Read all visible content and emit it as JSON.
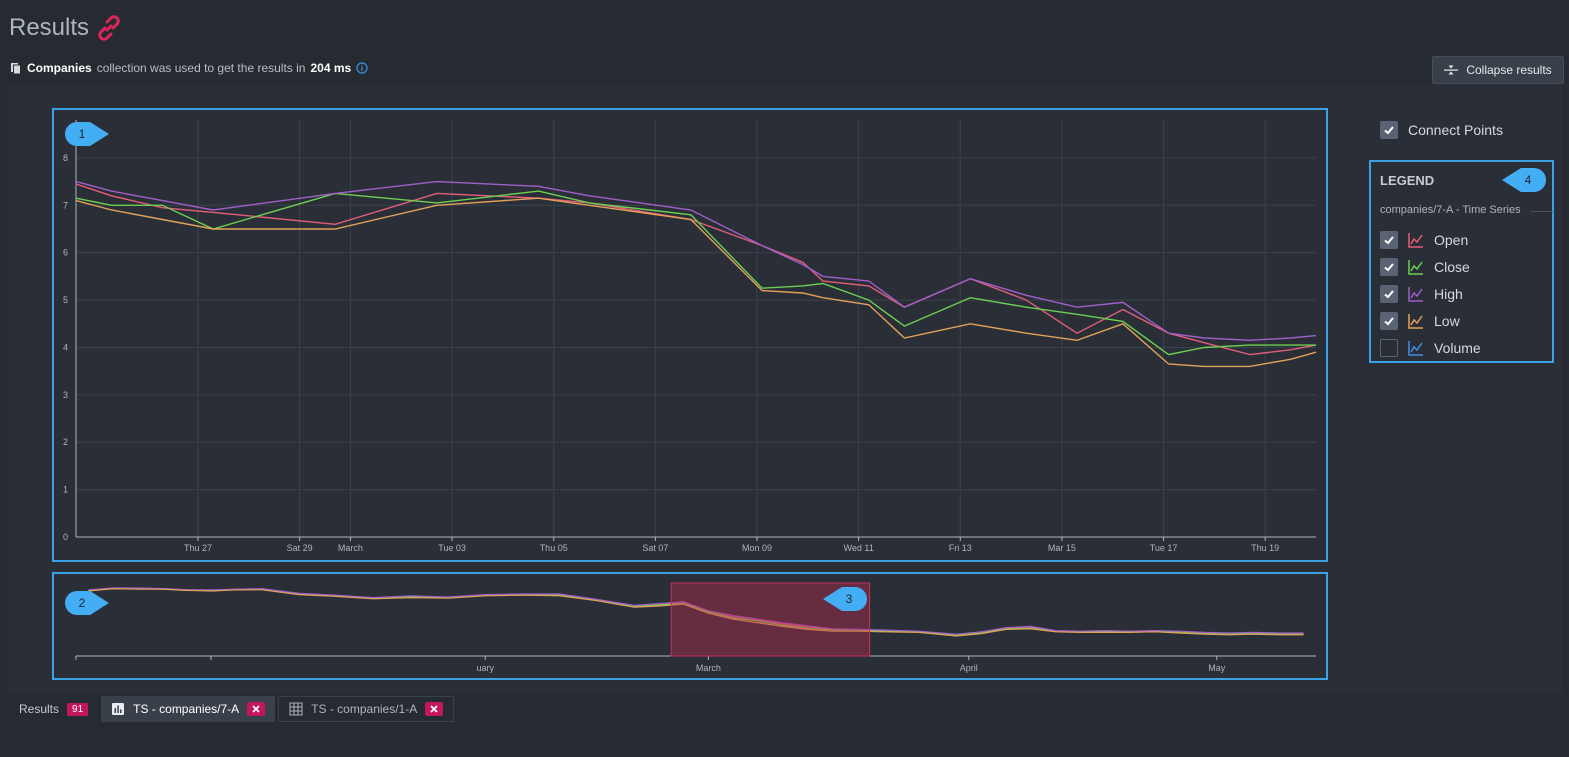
{
  "header": {
    "title": "Results",
    "collection_name": "Companies",
    "text_middle": "collection  was used to get the results in",
    "duration": "204 ms",
    "collapse_label": "Collapse results"
  },
  "controls": {
    "connect_points_label": "Connect Points",
    "connect_points_checked": true
  },
  "legend": {
    "title": "LEGEND",
    "subtitle": "companies/7-A - Time Series",
    "items": [
      {
        "label": "Open",
        "checked": true,
        "color": "#e35d7a"
      },
      {
        "label": "Close",
        "checked": true,
        "color": "#6ccf53"
      },
      {
        "label": "High",
        "checked": true,
        "color": "#a05fc9"
      },
      {
        "label": "Low",
        "checked": true,
        "color": "#e3a05a"
      },
      {
        "label": "Volume",
        "checked": false,
        "color": "#3f8fe0"
      }
    ]
  },
  "markers": [
    "1",
    "2",
    "3",
    "4"
  ],
  "tabs": [
    {
      "label": "Results",
      "badge": "91"
    },
    {
      "label": "TS - companies/7-A"
    },
    {
      "label": "TS - companies/1-A"
    }
  ],
  "chart_data": [
    {
      "type": "line",
      "y_ticks": [
        "0",
        "1",
        "2",
        "3",
        "4",
        "5",
        "6",
        "7",
        "8"
      ],
      "ylim": [
        0,
        8.8
      ],
      "x_tick_labels": [
        "Thu 27",
        "Sat 29",
        "March",
        "Tue 03",
        "Thu 05",
        "Sat 07",
        "Mon 09",
        "Wed 11",
        "Fri 13",
        "Mar 15",
        "Tue 17",
        "Thu 19"
      ],
      "x_tick_positions": [
        3,
        5,
        6,
        8,
        10,
        12,
        14,
        16,
        18,
        20,
        22,
        24
      ],
      "xlim": [
        0.6,
        25
      ],
      "grid": true,
      "x": [
        0.6,
        1.3,
        2.3,
        3.3,
        5.7,
        7.7,
        9.7,
        10.7,
        12.7,
        14.1,
        14.9,
        15.3,
        16.2,
        16.9,
        18.2,
        19.3,
        20.3,
        21.2,
        22.1,
        22.8,
        23.7,
        24.5,
        25
      ],
      "series": [
        {
          "name": "Open",
          "color": "#e35d7a",
          "values": [
            7.45,
            7.2,
            6.95,
            6.85,
            6.6,
            7.25,
            7.15,
            7.05,
            6.7,
            6.15,
            5.8,
            5.4,
            5.3,
            4.85,
            5.45,
            5.0,
            4.3,
            4.8,
            4.3,
            4.1,
            3.85,
            3.95,
            4.05
          ]
        },
        {
          "name": "Close",
          "color": "#6ccf53",
          "values": [
            7.15,
            7.0,
            7.0,
            6.5,
            7.25,
            7.05,
            7.3,
            7.05,
            6.8,
            5.25,
            5.3,
            5.35,
            5.0,
            4.45,
            5.05,
            4.85,
            4.7,
            4.55,
            3.85,
            4.0,
            4.05,
            4.05,
            4.05
          ]
        },
        {
          "name": "High",
          "color": "#a05fc9",
          "values": [
            7.5,
            7.3,
            7.1,
            6.9,
            7.25,
            7.5,
            7.4,
            7.2,
            6.9,
            6.15,
            5.75,
            5.5,
            5.4,
            4.85,
            5.45,
            5.1,
            4.85,
            4.95,
            4.3,
            4.2,
            4.15,
            4.2,
            4.25
          ]
        },
        {
          "name": "Low",
          "color": "#e3a05a",
          "values": [
            7.1,
            6.9,
            6.7,
            6.5,
            6.5,
            7.0,
            7.15,
            7.0,
            6.7,
            5.2,
            5.15,
            5.05,
            4.9,
            4.2,
            4.5,
            4.3,
            4.15,
            4.5,
            3.65,
            3.6,
            3.6,
            3.75,
            3.9
          ]
        }
      ]
    },
    {
      "type": "line",
      "x_tick_labels": [
        "uary",
        "March",
        "April",
        "May"
      ],
      "x_tick_positions": [
        0.33,
        0.51,
        0.72,
        0.92
      ],
      "xlim": [
        0,
        1
      ],
      "brush": [
        0.48,
        0.64
      ],
      "x": [
        0.01,
        0.03,
        0.05,
        0.07,
        0.09,
        0.11,
        0.13,
        0.15,
        0.18,
        0.21,
        0.24,
        0.27,
        0.3,
        0.33,
        0.36,
        0.39,
        0.42,
        0.45,
        0.47,
        0.49,
        0.51,
        0.53,
        0.55,
        0.57,
        0.59,
        0.61,
        0.63,
        0.65,
        0.68,
        0.71,
        0.73,
        0.75,
        0.77,
        0.79,
        0.81,
        0.83,
        0.85,
        0.87,
        0.89,
        0.91,
        0.93,
        0.95,
        0.97,
        0.99
      ],
      "series": [
        {
          "name": "Open",
          "color": "#e35d7a",
          "values": [
            0.96,
            1.0,
            0.99,
            0.99,
            0.97,
            0.96,
            0.98,
            0.98,
            0.9,
            0.87,
            0.83,
            0.86,
            0.84,
            0.88,
            0.89,
            0.89,
            0.8,
            0.7,
            0.72,
            0.76,
            0.6,
            0.52,
            0.46,
            0.4,
            0.35,
            0.31,
            0.3,
            0.29,
            0.27,
            0.22,
            0.26,
            0.33,
            0.35,
            0.28,
            0.27,
            0.28,
            0.27,
            0.28,
            0.27,
            0.25,
            0.24,
            0.25,
            0.24,
            0.24
          ]
        },
        {
          "name": "Close",
          "color": "#6ccf53",
          "values": [
            0.96,
            0.99,
            0.99,
            0.98,
            0.96,
            0.96,
            0.97,
            0.98,
            0.9,
            0.87,
            0.83,
            0.85,
            0.84,
            0.88,
            0.89,
            0.88,
            0.8,
            0.69,
            0.72,
            0.74,
            0.6,
            0.5,
            0.45,
            0.38,
            0.33,
            0.3,
            0.3,
            0.28,
            0.27,
            0.21,
            0.25,
            0.32,
            0.33,
            0.28,
            0.27,
            0.27,
            0.27,
            0.28,
            0.26,
            0.24,
            0.23,
            0.24,
            0.23,
            0.23
          ]
        },
        {
          "name": "High",
          "color": "#a05fc9",
          "values": [
            0.97,
            1.0,
            1.0,
            0.99,
            0.97,
            0.97,
            0.98,
            0.99,
            0.91,
            0.88,
            0.84,
            0.87,
            0.85,
            0.89,
            0.9,
            0.9,
            0.81,
            0.71,
            0.74,
            0.77,
            0.62,
            0.54,
            0.48,
            0.42,
            0.37,
            0.32,
            0.31,
            0.3,
            0.28,
            0.23,
            0.27,
            0.34,
            0.36,
            0.29,
            0.28,
            0.29,
            0.28,
            0.29,
            0.28,
            0.26,
            0.25,
            0.26,
            0.25,
            0.25
          ]
        },
        {
          "name": "Low",
          "color": "#e3a05a",
          "values": [
            0.95,
            0.99,
            0.98,
            0.98,
            0.96,
            0.95,
            0.97,
            0.97,
            0.89,
            0.86,
            0.82,
            0.84,
            0.83,
            0.87,
            0.88,
            0.87,
            0.79,
            0.68,
            0.7,
            0.73,
            0.58,
            0.48,
            0.42,
            0.36,
            0.31,
            0.28,
            0.28,
            0.27,
            0.26,
            0.2,
            0.24,
            0.31,
            0.32,
            0.27,
            0.26,
            0.26,
            0.26,
            0.27,
            0.25,
            0.23,
            0.22,
            0.23,
            0.22,
            0.22
          ]
        }
      ]
    }
  ]
}
